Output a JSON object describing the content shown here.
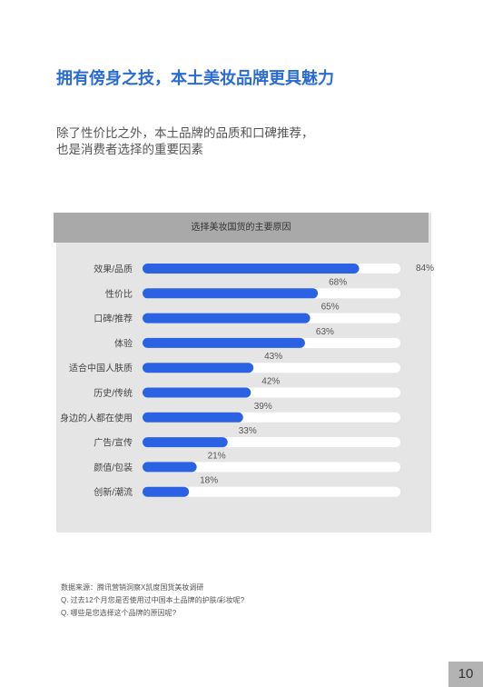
{
  "page": {
    "title": "拥有傍身之技，本土美妆品牌更具魅力",
    "subtitle_lines": [
      "除了性价比之外，本土品牌的品质和口碑推荐，",
      "也是消费者选择的重要因素"
    ],
    "footer_lines": [
      "数据来源：腾讯营销洞察X凯度国货美妆调研",
      "Q. 过去12个月您是否使用过中国本土品牌的护肤/彩妆呢?",
      "Q. 哪些是您选择这个品牌的原因呢?"
    ],
    "page_number": "10"
  },
  "chart_data": {
    "type": "bar",
    "orientation": "horizontal",
    "title": "选择美妆国货的主要原因",
    "categories": [
      "效果/品质",
      "性价比",
      "口碑/推荐",
      "体验",
      "适合中国人肤质",
      "历史/传统",
      "身边的人都在使用",
      "广告/宣传",
      "颜值/包装",
      "创新/潮流"
    ],
    "values": [
      84,
      68,
      65,
      63,
      43,
      42,
      39,
      33,
      21,
      18
    ],
    "unit": "%",
    "xlim": [
      0,
      100
    ],
    "colors": {
      "bar": "#2b62e3",
      "track": "#ffffff"
    }
  }
}
